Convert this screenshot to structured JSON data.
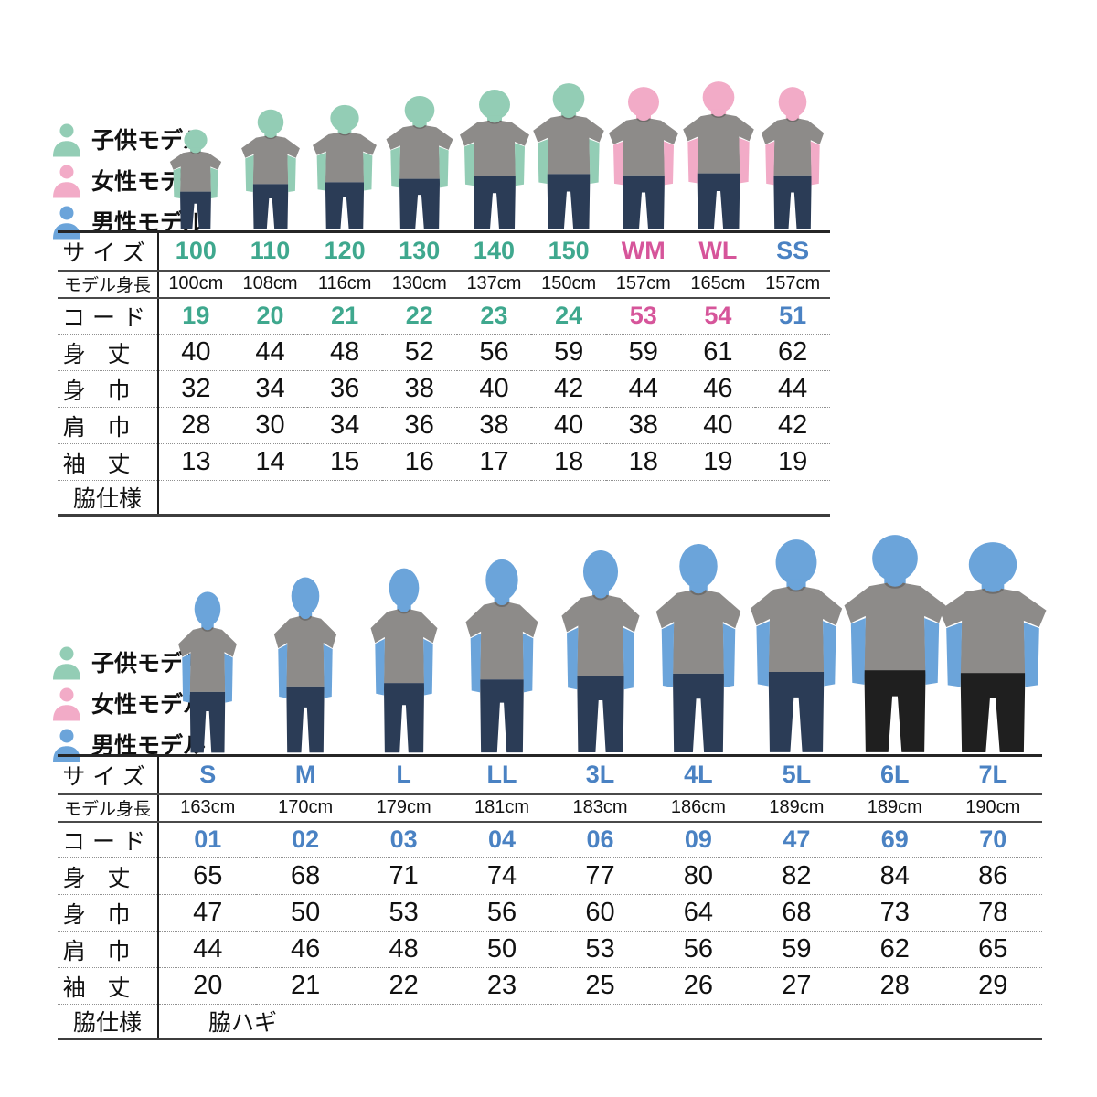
{
  "legend": {
    "items": [
      {
        "id": "child",
        "label": "子供モデル",
        "color": "#93cdb5"
      },
      {
        "id": "female",
        "label": "女性モデル",
        "color": "#f2abc7"
      },
      {
        "id": "male",
        "label": "男性モデル",
        "color": "#6ba4da"
      }
    ]
  },
  "row_labels": {
    "size": "サイズ",
    "model_height": "モデル身長",
    "code": "コード",
    "body_length": "身丈",
    "body_width": "身巾",
    "shoulder_width": "肩巾",
    "sleeve_length": "袖丈",
    "side_spec": "脇仕様"
  },
  "colors": {
    "teal": "#3fa88e",
    "pink": "#d6559a",
    "blue": "#4a82c3",
    "child_skin": "#93cdb5",
    "female_skin": "#f2abc7",
    "male_skin": "#6ba4da",
    "shirt": "#8d8b89",
    "jeans": "#2b3c56",
    "black_pants": "#1f1f1f"
  },
  "size_charts": [
    {
      "name": "kids-women",
      "side_spec_value": "",
      "columns": [
        {
          "size": "100",
          "color": "teal",
          "model": "child",
          "pants": "jeans",
          "model_height": "100cm",
          "code": "19",
          "body_length": "40",
          "body_width": "32",
          "shoulder_width": "28",
          "sleeve_length": "13"
        },
        {
          "size": "110",
          "color": "teal",
          "model": "child",
          "pants": "jeans",
          "model_height": "108cm",
          "code": "20",
          "body_length": "44",
          "body_width": "34",
          "shoulder_width": "30",
          "sleeve_length": "14"
        },
        {
          "size": "120",
          "color": "teal",
          "model": "child",
          "pants": "jeans",
          "model_height": "116cm",
          "code": "21",
          "body_length": "48",
          "body_width": "36",
          "shoulder_width": "34",
          "sleeve_length": "15"
        },
        {
          "size": "130",
          "color": "teal",
          "model": "child",
          "pants": "jeans",
          "model_height": "130cm",
          "code": "22",
          "body_length": "52",
          "body_width": "38",
          "shoulder_width": "36",
          "sleeve_length": "16"
        },
        {
          "size": "140",
          "color": "teal",
          "model": "child",
          "pants": "jeans",
          "model_height": "137cm",
          "code": "23",
          "body_length": "56",
          "body_width": "40",
          "shoulder_width": "38",
          "sleeve_length": "17"
        },
        {
          "size": "150",
          "color": "teal",
          "model": "child",
          "pants": "jeans",
          "model_height": "150cm",
          "code": "24",
          "body_length": "59",
          "body_width": "42",
          "shoulder_width": "40",
          "sleeve_length": "18"
        },
        {
          "size": "WM",
          "color": "pink",
          "model": "female",
          "pants": "jeans",
          "model_height": "157cm",
          "code": "53",
          "body_length": "59",
          "body_width": "44",
          "shoulder_width": "38",
          "sleeve_length": "18"
        },
        {
          "size": "WL",
          "color": "pink",
          "model": "female",
          "pants": "jeans",
          "model_height": "165cm",
          "code": "54",
          "body_length": "61",
          "body_width": "46",
          "shoulder_width": "40",
          "sleeve_length": "19"
        },
        {
          "size": "SS",
          "color": "blue",
          "model": "female",
          "pants": "jeans",
          "model_height": "157cm",
          "code": "51",
          "body_length": "62",
          "body_width": "44",
          "shoulder_width": "42",
          "sleeve_length": "19"
        }
      ]
    },
    {
      "name": "mens",
      "side_spec_value": "脇ハギ",
      "columns": [
        {
          "size": "S",
          "color": "blue",
          "model": "male",
          "pants": "jeans",
          "model_height": "163cm",
          "code": "01",
          "body_length": "65",
          "body_width": "47",
          "shoulder_width": "44",
          "sleeve_length": "20"
        },
        {
          "size": "M",
          "color": "blue",
          "model": "male",
          "pants": "jeans",
          "model_height": "170cm",
          "code": "02",
          "body_length": "68",
          "body_width": "50",
          "shoulder_width": "46",
          "sleeve_length": "21"
        },
        {
          "size": "L",
          "color": "blue",
          "model": "male",
          "pants": "jeans",
          "model_height": "179cm",
          "code": "03",
          "body_length": "71",
          "body_width": "53",
          "shoulder_width": "48",
          "sleeve_length": "22"
        },
        {
          "size": "LL",
          "color": "blue",
          "model": "male",
          "pants": "jeans",
          "model_height": "181cm",
          "code": "04",
          "body_length": "74",
          "body_width": "56",
          "shoulder_width": "50",
          "sleeve_length": "23"
        },
        {
          "size": "3L",
          "color": "blue",
          "model": "male",
          "pants": "jeans",
          "model_height": "183cm",
          "code": "06",
          "body_length": "77",
          "body_width": "60",
          "shoulder_width": "53",
          "sleeve_length": "25"
        },
        {
          "size": "4L",
          "color": "blue",
          "model": "male",
          "pants": "jeans",
          "model_height": "186cm",
          "code": "09",
          "body_length": "80",
          "body_width": "64",
          "shoulder_width": "56",
          "sleeve_length": "26"
        },
        {
          "size": "5L",
          "color": "blue",
          "model": "male",
          "pants": "jeans",
          "model_height": "189cm",
          "code": "47",
          "body_length": "82",
          "body_width": "68",
          "shoulder_width": "59",
          "sleeve_length": "27"
        },
        {
          "size": "6L",
          "color": "blue",
          "model": "male",
          "pants": "black",
          "model_height": "189cm",
          "code": "69",
          "body_length": "84",
          "body_width": "73",
          "shoulder_width": "62",
          "sleeve_length": "28"
        },
        {
          "size": "7L",
          "color": "blue",
          "model": "male",
          "pants": "black",
          "model_height": "190cm",
          "code": "70",
          "body_length": "86",
          "body_width": "78",
          "shoulder_width": "65",
          "sleeve_length": "29"
        }
      ]
    }
  ]
}
